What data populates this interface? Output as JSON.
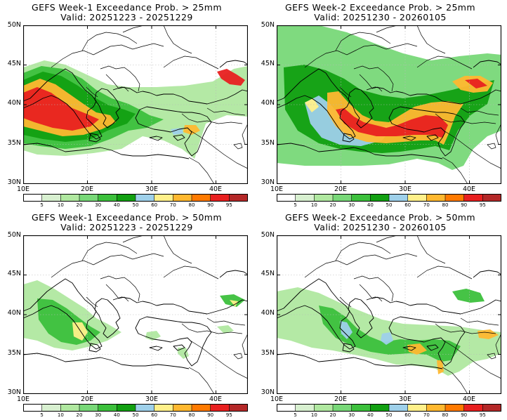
{
  "legend_colors": [
    "#ffffff",
    "#d8f0d0",
    "#b0e8a0",
    "#78d878",
    "#3cc03c",
    "#12a012",
    "#9ed0ea",
    "#fff08a",
    "#ffb830",
    "#ff7a00",
    "#e82020",
    "#b42828"
  ],
  "legend_labels": [
    "5",
    "10",
    "20",
    "30",
    "40",
    "50",
    "60",
    "70",
    "80",
    "90",
    "95"
  ],
  "panels": [
    {
      "title": "GEFS Week-1 Exceedance Prob. > 25mm",
      "valid": "Valid: 20251223 - 20251229",
      "lat_labels": [
        "50N",
        "45N",
        "40N",
        "35N",
        "30N"
      ],
      "lon_labels": [
        "10E",
        "20E",
        "30E",
        "40E"
      ]
    },
    {
      "title": "GEFS Week-2 Exceedance Prob. > 25mm",
      "valid": "Valid: 20251230 - 20260105",
      "lat_labels": [
        "50N",
        "45N",
        "40N",
        "35N",
        "30N"
      ],
      "lon_labels": [
        "10E",
        "20E",
        "30E",
        "40E"
      ]
    },
    {
      "title": "GEFS Week-1 Exceedance Prob. > 50mm",
      "valid": "Valid: 20251223 - 20251229",
      "lat_labels": [
        "50N",
        "45N",
        "40N",
        "35N",
        "30N"
      ],
      "lon_labels": [
        "10E",
        "20E",
        "30E",
        "40E"
      ]
    },
    {
      "title": "GEFS Week-2 Exceedance Prob. > 50mm",
      "valid": "Valid: 20251230 - 20260105",
      "lat_labels": [
        "50N",
        "45N",
        "40N",
        "35N",
        "30N"
      ],
      "lon_labels": [
        "10E",
        "20E",
        "30E",
        "40E"
      ]
    }
  ]
}
